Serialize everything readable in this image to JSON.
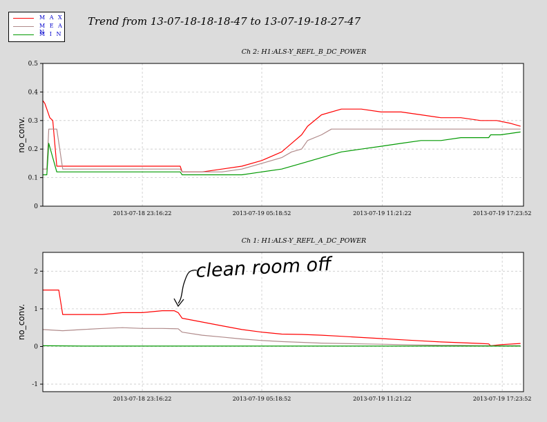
{
  "title": "Trend from 13-07-18-18-18-47 to 13-07-19-18-27-47",
  "legend": [
    {
      "label": "M A X",
      "color": "#ff0000"
    },
    {
      "label": "M E A N",
      "color": "#b08a8a"
    },
    {
      "label": "M I N",
      "color": "#009900"
    }
  ],
  "annotation": "clean room off",
  "chart_data": [
    {
      "type": "line",
      "title": "Ch 2: H1:ALS-Y_REFL_B_DC_POWER",
      "ylabel": "no_conv.",
      "xlabel": "",
      "ylim": [
        0,
        0.5
      ],
      "yticks": [
        "0",
        "0.1",
        "0.2",
        "0.3",
        "0.4",
        "0.5"
      ],
      "xlim": [
        0,
        24.15
      ],
      "xticks": [
        {
          "at": 5.0,
          "label": "2013-07-18 23:16:22"
        },
        {
          "at": 11.0,
          "label": "2013-07-19 05:18:52"
        },
        {
          "at": 17.05,
          "label": "2013-07-19 11:21:22"
        },
        {
          "at": 23.08,
          "label": "2013-07-19 17:23:52"
        }
      ],
      "grid": true,
      "series": [
        {
          "name": "MAX",
          "color": "#ff0000",
          "x": [
            0,
            0.1,
            0.2,
            0.35,
            0.5,
            0.7,
            1.0,
            1.5,
            2.0,
            3.0,
            4.0,
            5.0,
            6.0,
            6.9,
            7.0,
            8.0,
            9.0,
            10.0,
            11.0,
            12.0,
            12.5,
            13.0,
            13.3,
            14.0,
            15.0,
            16.0,
            17.0,
            18.0,
            19.0,
            20.0,
            21.0,
            22.0,
            22.4,
            22.8,
            23.5,
            24.0
          ],
          "y": [
            0.37,
            0.36,
            0.34,
            0.31,
            0.3,
            0.14,
            0.14,
            0.14,
            0.14,
            0.14,
            0.14,
            0.14,
            0.14,
            0.14,
            0.12,
            0.12,
            0.13,
            0.14,
            0.16,
            0.19,
            0.22,
            0.25,
            0.28,
            0.32,
            0.34,
            0.34,
            0.33,
            0.33,
            0.32,
            0.31,
            0.31,
            0.3,
            0.3,
            0.3,
            0.29,
            0.28
          ]
        },
        {
          "name": "MEAN",
          "color": "#b08a8a",
          "x": [
            0,
            0.2,
            0.3,
            0.7,
            1.0,
            2.0,
            3.0,
            4.0,
            5.0,
            6.0,
            6.9,
            7.0,
            8.0,
            9.0,
            10.0,
            11.0,
            12.0,
            12.5,
            13.0,
            13.3,
            14.0,
            14.5,
            15.0,
            16.0,
            17.0,
            18.0,
            19.0,
            20.0,
            21.0,
            22.0,
            22.4,
            22.8,
            24.0
          ],
          "y": [
            0.13,
            0.13,
            0.27,
            0.27,
            0.13,
            0.13,
            0.13,
            0.13,
            0.13,
            0.13,
            0.13,
            0.12,
            0.12,
            0.12,
            0.13,
            0.15,
            0.17,
            0.19,
            0.2,
            0.23,
            0.25,
            0.27,
            0.27,
            0.27,
            0.27,
            0.27,
            0.27,
            0.27,
            0.27,
            0.27,
            0.27,
            0.27,
            0.27
          ]
        },
        {
          "name": "MIN",
          "color": "#009900",
          "x": [
            0,
            0.2,
            0.3,
            0.7,
            1.0,
            2.0,
            3.0,
            4.0,
            5.0,
            6.0,
            6.9,
            7.0,
            8.0,
            9.0,
            10.0,
            11.0,
            12.0,
            13.0,
            14.0,
            15.0,
            16.0,
            17.0,
            18.0,
            19.0,
            20.0,
            21.0,
            22.0,
            22.4,
            22.5,
            22.8,
            23.0,
            24.0
          ],
          "y": [
            0.11,
            0.11,
            0.22,
            0.12,
            0.12,
            0.12,
            0.12,
            0.12,
            0.12,
            0.12,
            0.12,
            0.11,
            0.11,
            0.11,
            0.11,
            0.12,
            0.13,
            0.15,
            0.17,
            0.19,
            0.2,
            0.21,
            0.22,
            0.23,
            0.23,
            0.24,
            0.24,
            0.24,
            0.25,
            0.25,
            0.25,
            0.26
          ]
        }
      ]
    },
    {
      "type": "line",
      "title": "Ch 1: H1:ALS-Y_REFL_A_DC_POWER",
      "ylabel": "no_conv.",
      "xlabel": "",
      "ylim": [
        -1.2,
        2.5
      ],
      "yticks": [
        "-1",
        "0",
        "1",
        "2"
      ],
      "xlim": [
        0,
        24.15
      ],
      "xticks": [
        {
          "at": 5.0,
          "label": "2013-07-18 23:16:22"
        },
        {
          "at": 11.0,
          "label": "2013-07-19 05:18:52"
        },
        {
          "at": 17.05,
          "label": "2013-07-19 11:21:22"
        },
        {
          "at": 23.08,
          "label": "2013-07-19 17:23:52"
        }
      ],
      "grid": true,
      "series": [
        {
          "name": "MAX",
          "color": "#ff0000",
          "x": [
            0,
            0.8,
            1.0,
            2.0,
            3.0,
            4.0,
            5.0,
            6.0,
            6.6,
            6.8,
            7.0,
            8.0,
            9.0,
            10.0,
            11.0,
            12.0,
            13.0,
            14.0,
            15.0,
            16.0,
            17.0,
            18.0,
            19.0,
            20.0,
            21.0,
            22.0,
            22.4,
            22.5,
            23.0,
            24.0
          ],
          "y": [
            1.5,
            1.5,
            0.85,
            0.85,
            0.85,
            0.9,
            0.9,
            0.95,
            0.95,
            0.9,
            0.75,
            0.65,
            0.55,
            0.45,
            0.38,
            0.33,
            0.32,
            0.3,
            0.27,
            0.24,
            0.21,
            0.18,
            0.15,
            0.12,
            0.1,
            0.08,
            0.07,
            0.02,
            0.05,
            0.08
          ]
        },
        {
          "name": "MEAN",
          "color": "#b08a8a",
          "x": [
            0,
            1.0,
            2.0,
            3.0,
            4.0,
            5.0,
            6.0,
            6.8,
            7.0,
            8.0,
            9.0,
            10.0,
            11.0,
            12.0,
            13.0,
            14.0,
            15.0,
            16.0,
            17.0,
            18.0,
            19.0,
            20.0,
            21.0,
            22.0,
            22.4,
            23.0,
            24.0
          ],
          "y": [
            0.45,
            0.42,
            0.45,
            0.48,
            0.5,
            0.48,
            0.48,
            0.47,
            0.38,
            0.3,
            0.25,
            0.2,
            0.16,
            0.13,
            0.11,
            0.09,
            0.08,
            0.07,
            0.06,
            0.05,
            0.04,
            0.03,
            0.03,
            0.02,
            0.02,
            0.02,
            0.02
          ]
        },
        {
          "name": "MIN",
          "color": "#009900",
          "x": [
            0,
            2.0,
            4.0,
            6.0,
            8.0,
            10.0,
            12.0,
            14.0,
            16.0,
            18.0,
            20.0,
            22.0,
            22.4,
            24.0
          ],
          "y": [
            0.02,
            0.01,
            0.01,
            0.01,
            0.01,
            0.01,
            0.01,
            0.01,
            0.01,
            0.01,
            0.01,
            0.01,
            0.01,
            0.01
          ]
        }
      ]
    }
  ]
}
